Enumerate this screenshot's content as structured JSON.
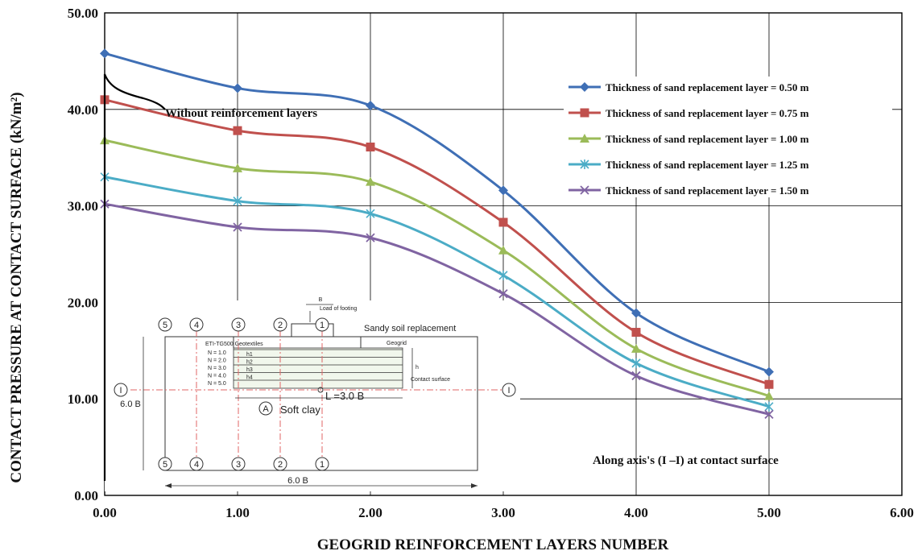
{
  "chart_data": {
    "type": "line",
    "title": "",
    "xlabel": "GEOGRID REINFORCEMENT LAYERS NUMBER",
    "ylabel": "CONTACT PRESSURE AT CONTACT SURFACE (kN/m²)",
    "xlim": [
      0,
      6
    ],
    "ylim": [
      0,
      50
    ],
    "xticks": [
      "0.00",
      "1.00",
      "2.00",
      "3.00",
      "4.00",
      "5.00",
      "6.00"
    ],
    "yticks": [
      "0.00",
      "10.00",
      "20.00",
      "30.00",
      "40.00",
      "50.00"
    ],
    "grid": true,
    "legend_position": "right",
    "x": [
      0,
      1,
      2,
      3,
      4,
      5
    ],
    "series": [
      {
        "name": "Thickness of sand replacement layer = 0.50 m",
        "color": "#3f6fb5",
        "marker": "diamond",
        "values": [
          45.8,
          42.2,
          40.4,
          31.6,
          18.9,
          12.8
        ]
      },
      {
        "name": "Thickness of sand replacement layer = 0.75 m",
        "color": "#c0504d",
        "marker": "square",
        "values": [
          41.0,
          37.8,
          36.1,
          28.3,
          16.9,
          11.5
        ]
      },
      {
        "name": "Thickness of sand replacement layer = 1.00 m",
        "color": "#9bbb59",
        "marker": "triangle",
        "values": [
          36.8,
          33.9,
          32.5,
          25.4,
          15.2,
          10.3
        ]
      },
      {
        "name": "Thickness of sand replacement layer = 1.25 m",
        "color": "#4bacc6",
        "marker": "star",
        "values": [
          33.0,
          30.5,
          29.2,
          22.8,
          13.7,
          9.2
        ]
      },
      {
        "name": "Thickness of sand replacement layer = 1.50 m",
        "color": "#8064a2",
        "marker": "x",
        "values": [
          30.2,
          27.8,
          26.7,
          20.9,
          12.4,
          8.4
        ]
      }
    ],
    "annotations": {
      "without_reinforcement": "Without reinforcement layers",
      "axis_note": "Along axis's (I –I) at contact surface"
    }
  },
  "inset": {
    "axis_numbers": [
      "5",
      "4",
      "3",
      "2",
      "1"
    ],
    "section_label": "I",
    "B_label": "B",
    "load_label": "Load of footing",
    "sandy_label": "Sandy soil replacement",
    "geogrid_label": "Geogrid",
    "geotextile_label": "ETI-TG500 Geotextiles",
    "n_labels": [
      "N = 1.0",
      "N = 2.0",
      "N = 3.0",
      "N = 4.0",
      "N = 5.0"
    ],
    "h_labels": [
      "h1",
      "h2",
      "h3",
      "h4"
    ],
    "h_label": "h",
    "contact_label": "Contact surface",
    "L_label": "L =3.0 B",
    "A_label": "A",
    "soft_clay_label": "Soft clay",
    "height_dim": "6.0 B",
    "width_dim": "6.0 B"
  }
}
